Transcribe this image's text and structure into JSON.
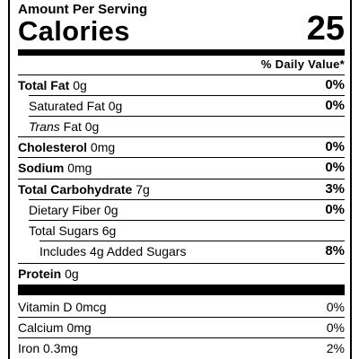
{
  "header": {
    "amount_per_serving": "Amount Per Serving",
    "calories_label": "Calories",
    "calories_value": "25",
    "daily_value_header": "% Daily Value*"
  },
  "nutrients": {
    "total_fat": {
      "label": "Total Fat",
      "amount": "0g",
      "dv": "0%"
    },
    "saturated_fat": {
      "label": "Saturated Fat 0g",
      "dv": "0%"
    },
    "trans_fat": {
      "label_italic": "Trans",
      "label_rest": "Fat 0g"
    },
    "cholesterol": {
      "label": "Cholesterol",
      "amount": "0mg",
      "dv": "0%"
    },
    "sodium": {
      "label": "Sodium",
      "amount": "0mg",
      "dv": "0%"
    },
    "total_carbohydrate": {
      "label": "Total Carbohydrate",
      "amount": "7g",
      "dv": "3%"
    },
    "dietary_fiber": {
      "label": "Dietary Fiber 0g",
      "dv": "0%"
    },
    "total_sugars": {
      "label": "Total Sugars 6g"
    },
    "added_sugars": {
      "label": "Includes 4g Added Sugars",
      "dv": "8%"
    },
    "protein": {
      "label": "Protein",
      "amount": "0g"
    }
  },
  "vitamins": {
    "vitamin_d": {
      "label": "Vitamin D 0mcg",
      "dv": "0%"
    },
    "calcium": {
      "label": "Calcium 0mg",
      "dv": "0%"
    },
    "iron": {
      "label": "Iron 0.3mg",
      "dv": "2%"
    }
  }
}
